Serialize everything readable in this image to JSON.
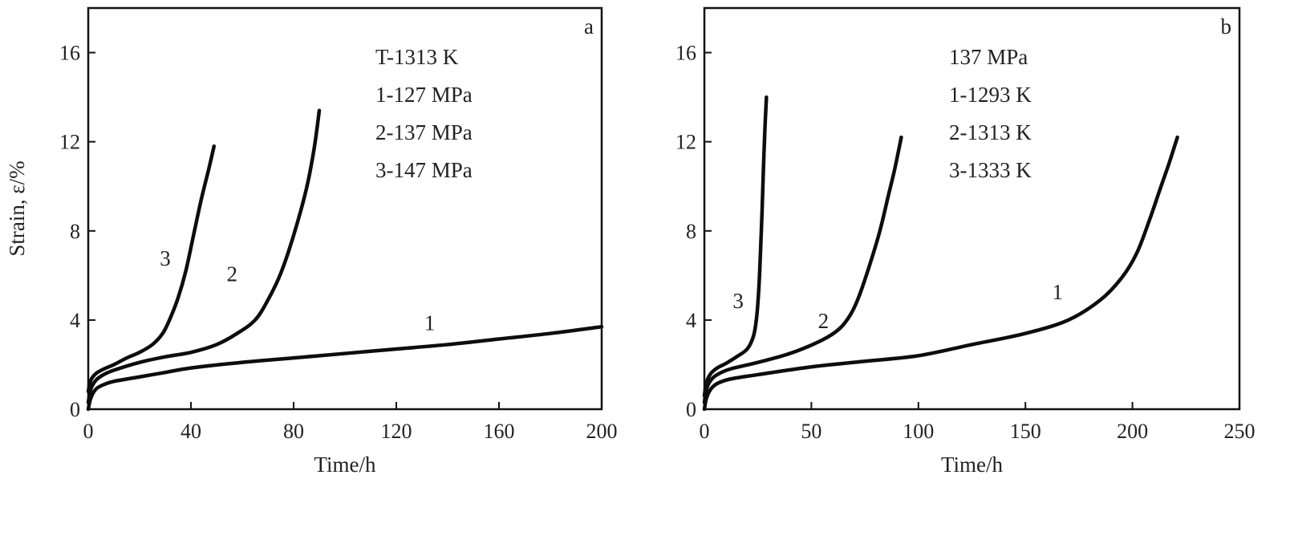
{
  "chart_data": [
    {
      "type": "line",
      "panel_label": "a",
      "xlabel": "Time/h",
      "ylabel": "Strain, ε/%",
      "xlim": [
        0,
        200
      ],
      "ylim": [
        0,
        18
      ],
      "xticks": [
        0,
        40,
        80,
        120,
        160,
        200
      ],
      "yticks": [
        0,
        4,
        8,
        12,
        16
      ],
      "grid": false,
      "annotation_lines": [
        "T-1313 K",
        "1-127 MPa",
        "2-137 MPa",
        "3-147 MPa"
      ],
      "series": [
        {
          "name": "1",
          "label_at": [
            133,
            3.9
          ],
          "x": [
            0,
            1,
            3,
            6,
            10,
            20,
            30,
            40,
            60,
            80,
            100,
            120,
            140,
            160,
            180,
            200
          ],
          "y": [
            0,
            0.5,
            0.9,
            1.1,
            1.25,
            1.45,
            1.65,
            1.85,
            2.1,
            2.3,
            2.5,
            2.7,
            2.9,
            3.15,
            3.4,
            3.7
          ]
        },
        {
          "name": "2",
          "label_at": [
            56,
            6.1
          ],
          "x": [
            0,
            1,
            3,
            6,
            10,
            20,
            30,
            40,
            50,
            58,
            65,
            70,
            75,
            80,
            85,
            88,
            90
          ],
          "y": [
            0.3,
            0.9,
            1.3,
            1.55,
            1.75,
            2.1,
            2.35,
            2.55,
            2.9,
            3.4,
            4.0,
            4.9,
            6.1,
            7.8,
            9.9,
            11.7,
            13.4
          ]
        },
        {
          "name": "3",
          "label_at": [
            30,
            6.8
          ],
          "x": [
            0,
            1,
            3,
            6,
            10,
            15,
            20,
            25,
            29,
            32,
            35,
            38,
            41,
            44,
            47,
            49
          ],
          "y": [
            0.8,
            1.3,
            1.6,
            1.8,
            2.0,
            2.3,
            2.55,
            2.9,
            3.4,
            4.1,
            5.0,
            6.2,
            7.8,
            9.4,
            10.8,
            11.8
          ]
        }
      ]
    },
    {
      "type": "line",
      "panel_label": "b",
      "xlabel": "Time/h",
      "ylabel": "",
      "xlim": [
        0,
        250
      ],
      "ylim": [
        0,
        18
      ],
      "xticks": [
        0,
        50,
        100,
        150,
        200,
        250
      ],
      "yticks": [
        0,
        4,
        8,
        12,
        16
      ],
      "grid": false,
      "annotation_lines": [
        "137 MPa",
        "1-1293 K",
        "2-1313 K",
        "3-1333 K"
      ],
      "series": [
        {
          "name": "1",
          "label_at": [
            165,
            5.3
          ],
          "x": [
            0,
            1,
            3,
            6,
            12,
            25,
            50,
            75,
            100,
            125,
            150,
            170,
            185,
            195,
            202,
            208,
            213,
            217,
            221
          ],
          "y": [
            0,
            0.5,
            0.9,
            1.15,
            1.35,
            1.55,
            1.9,
            2.15,
            2.4,
            2.9,
            3.4,
            4.0,
            4.9,
            5.9,
            7.0,
            8.5,
            9.9,
            11.0,
            12.2
          ]
        },
        {
          "name": "2",
          "label_at": [
            55.6,
            4.0
          ],
          "x": [
            0,
            1,
            3,
            6,
            12,
            25,
            40,
            55,
            63,
            68,
            72,
            77,
            82,
            86,
            89,
            92
          ],
          "y": [
            0.3,
            0.9,
            1.3,
            1.55,
            1.8,
            2.1,
            2.5,
            3.1,
            3.6,
            4.2,
            5.0,
            6.4,
            8.0,
            9.6,
            10.8,
            12.2
          ]
        },
        {
          "name": "3",
          "label_at": [
            15.8,
            4.9
          ],
          "x": [
            0,
            1,
            3,
            6,
            10,
            15,
            20,
            23,
            24.5,
            25.5,
            26.2,
            27,
            27.6,
            28.3,
            29
          ],
          "y": [
            0.6,
            1.2,
            1.6,
            1.85,
            2.05,
            2.35,
            2.7,
            3.3,
            4.2,
            5.5,
            7.0,
            9.0,
            10.8,
            12.6,
            14.0
          ]
        }
      ]
    }
  ]
}
